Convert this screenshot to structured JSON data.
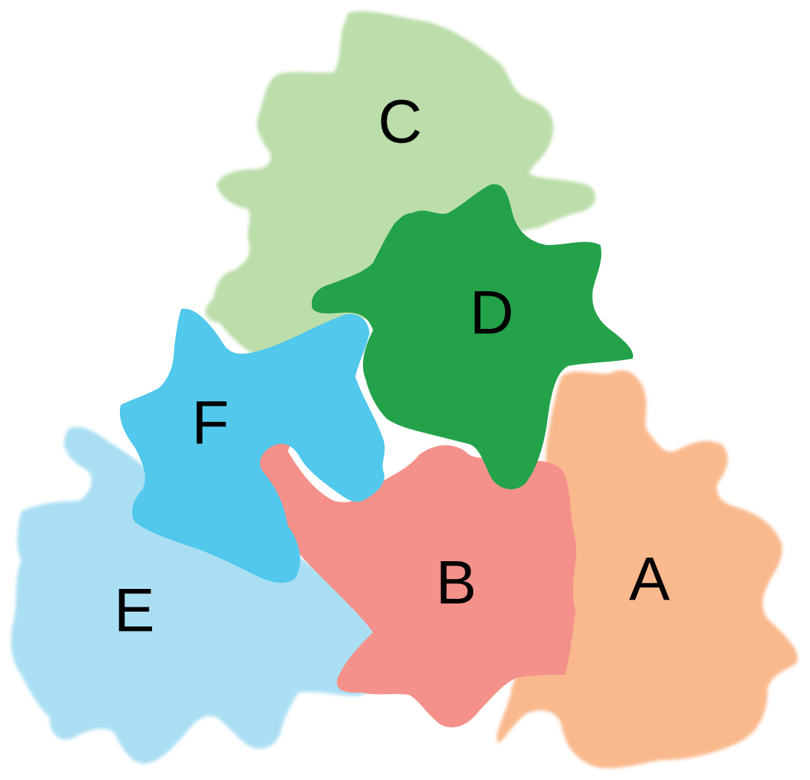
{
  "diagram": {
    "regions": [
      {
        "id": "A",
        "label": "A",
        "color": "#f9b98d"
      },
      {
        "id": "B",
        "label": "B",
        "color": "#f4918a"
      },
      {
        "id": "C",
        "label": "C",
        "color": "#bcdeaa"
      },
      {
        "id": "D",
        "label": "D",
        "color": "#23a24a"
      },
      {
        "id": "E",
        "label": "E",
        "color": "#aadff3"
      },
      {
        "id": "F",
        "label": "F",
        "color": "#51c8ec"
      }
    ]
  }
}
